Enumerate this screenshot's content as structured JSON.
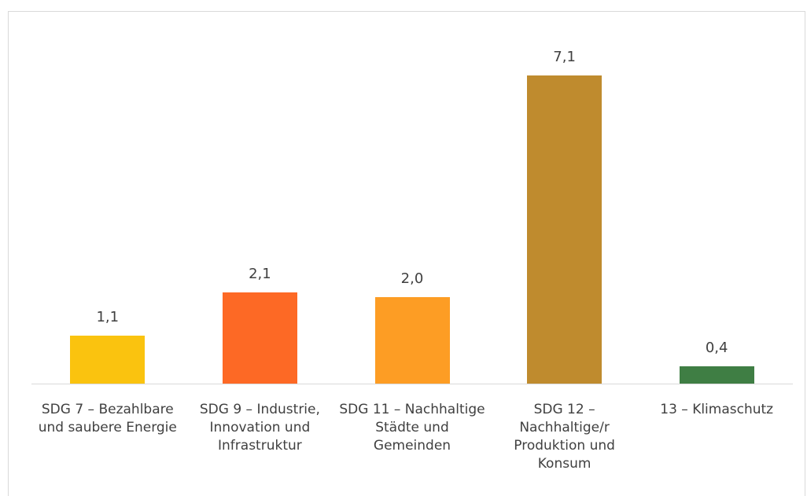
{
  "chart_data": {
    "type": "bar",
    "categories": [
      "SDG 7 – Bezahlbare und saubere Energie",
      "SDG 9 – Industrie, Innovation und Infrastruktur",
      "SDG 11 – Nachhaltige Städte und Gemeinden",
      "SDG 12 – Nachhaltige/r Produktion und Konsum",
      "13 – Klimaschutz"
    ],
    "values": [
      1.1,
      2.1,
      2.0,
      7.1,
      0.4
    ],
    "value_labels": [
      "1,1",
      "2,1",
      "2,0",
      "7,1",
      "0,4"
    ],
    "colors": [
      "#fac30f",
      "#fd6925",
      "#fd9d24",
      "#bf8b2e",
      "#3f7e44"
    ]
  }
}
